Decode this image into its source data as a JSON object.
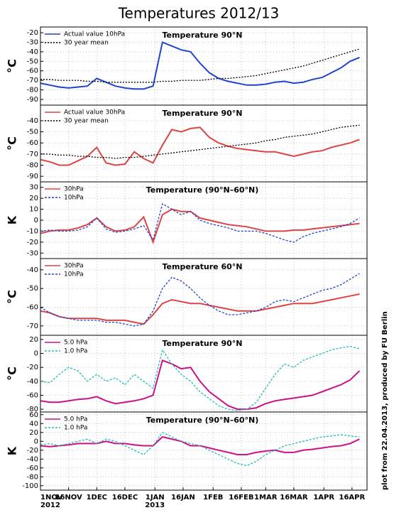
{
  "title": "Temperatures 2012/13",
  "credit": "plot from 22.04.2013, produced by FU Berlin",
  "x_axis": {
    "xlim": [
      0,
      174
    ],
    "xticks": [
      {
        "value": 0,
        "label": "1NOV"
      },
      {
        "value": 15,
        "label": "16NOV"
      },
      {
        "value": 30,
        "label": "1DEC"
      },
      {
        "value": 45,
        "label": "16DEC"
      },
      {
        "value": 61,
        "label": "1JAN"
      },
      {
        "value": 76,
        "label": "16JAN"
      },
      {
        "value": 92,
        "label": "1FEB"
      },
      {
        "value": 107,
        "label": "16FEB"
      },
      {
        "value": 120,
        "label": "1MAR"
      },
      {
        "value": 135,
        "label": "16MAR"
      },
      {
        "value": 151,
        "label": "1APR"
      },
      {
        "value": 166,
        "label": "16APR"
      }
    ],
    "year_labels": [
      {
        "value": 0,
        "label": "2012"
      },
      {
        "value": 61,
        "label": "2013"
      }
    ]
  },
  "chart_data": [
    {
      "type": "line",
      "title": "Temperature 90°N",
      "ylabel": "°C",
      "ylim": [
        -96,
        -14
      ],
      "yticks": [
        -90,
        -80,
        -70,
        -60,
        -50,
        -40,
        -30,
        -20
      ],
      "grid": true,
      "legend": "upper left",
      "x": [
        0,
        5,
        10,
        15,
        20,
        25,
        30,
        35,
        40,
        45,
        50,
        55,
        60,
        65,
        70,
        75,
        80,
        85,
        90,
        95,
        100,
        105,
        110,
        115,
        120,
        125,
        130,
        135,
        140,
        145,
        150,
        155,
        160,
        165,
        170
      ],
      "series": [
        {
          "name": "Actual value 10hPa",
          "color": "#2244cc",
          "style": "solid",
          "values": [
            -73,
            -75,
            -77,
            -78,
            -77,
            -76,
            -68,
            -72,
            -76,
            -78,
            -79,
            -79,
            -76,
            -30,
            -34,
            -38,
            -40,
            -52,
            -62,
            -68,
            -71,
            -73,
            -75,
            -75,
            -74,
            -72,
            -71,
            -73,
            -72,
            -69,
            -67,
            -62,
            -57,
            -50,
            -46
          ]
        },
        {
          "name": "30 year mean",
          "color": "#000000",
          "style": "dotted",
          "values": [
            -69,
            -69,
            -70,
            -70,
            -70,
            -71,
            -71,
            -72,
            -72,
            -72,
            -72,
            -72,
            -72,
            -71,
            -71,
            -70,
            -70,
            -70,
            -69,
            -68,
            -68,
            -67,
            -66,
            -65,
            -63,
            -61,
            -59,
            -57,
            -55,
            -52,
            -49,
            -46,
            -43,
            -40,
            -37
          ]
        }
      ]
    },
    {
      "type": "line",
      "title": "Temperature 90°N",
      "ylabel": "°C",
      "ylim": [
        -95,
        -26
      ],
      "yticks": [
        -90,
        -80,
        -70,
        -60,
        -50,
        -40
      ],
      "grid": true,
      "legend": "upper left",
      "x": [
        0,
        5,
        10,
        15,
        20,
        25,
        30,
        35,
        40,
        45,
        50,
        55,
        60,
        65,
        70,
        75,
        80,
        85,
        90,
        95,
        100,
        105,
        110,
        115,
        120,
        125,
        130,
        135,
        140,
        145,
        150,
        155,
        160,
        165,
        170
      ],
      "series": [
        {
          "name": "Actual value 30hPa",
          "color": "#dd4444",
          "style": "solid",
          "values": [
            -75,
            -77,
            -80,
            -80,
            -76,
            -72,
            -64,
            -78,
            -80,
            -79,
            -68,
            -74,
            -78,
            -62,
            -48,
            -50,
            -47,
            -46,
            -55,
            -60,
            -63,
            -65,
            -66,
            -67,
            -68,
            -68,
            -70,
            -72,
            -70,
            -68,
            -67,
            -64,
            -62,
            -60,
            -57
          ]
        },
        {
          "name": "30 year mean",
          "color": "#000000",
          "style": "dotted",
          "values": [
            -70,
            -70,
            -71,
            -71,
            -72,
            -72,
            -73,
            -73,
            -74,
            -73,
            -73,
            -72,
            -71,
            -70,
            -69,
            -68,
            -67,
            -66,
            -65,
            -64,
            -63,
            -62,
            -61,
            -60,
            -58,
            -57,
            -55,
            -54,
            -53,
            -52,
            -50,
            -48,
            -46,
            -45,
            -44
          ]
        }
      ]
    },
    {
      "type": "line",
      "title": "Temperature (90°N–60°N)",
      "ylabel": "K",
      "ylim": [
        -35,
        35
      ],
      "yticks": [
        -30,
        -20,
        -10,
        0,
        10,
        20,
        30
      ],
      "grid": true,
      "legend": "upper left",
      "x": [
        0,
        5,
        10,
        15,
        20,
        25,
        30,
        35,
        40,
        45,
        50,
        55,
        60,
        65,
        70,
        75,
        80,
        85,
        90,
        95,
        100,
        105,
        110,
        115,
        120,
        125,
        130,
        135,
        140,
        145,
        150,
        155,
        160,
        165,
        170
      ],
      "series": [
        {
          "name": "30hPa",
          "color": "#dd4444",
          "style": "solid",
          "values": [
            -12,
            -10,
            -9,
            -9,
            -7,
            -4,
            2,
            -6,
            -10,
            -9,
            -6,
            3,
            -20,
            5,
            10,
            8,
            8,
            2,
            0,
            -2,
            -4,
            -5,
            -6,
            -8,
            -10,
            -10,
            -10,
            -9,
            -9,
            -8,
            -7,
            -6,
            -5,
            -4,
            -3
          ]
        },
        {
          "name": "10hPa",
          "color": "#2244cc",
          "style": "dashed",
          "values": [
            -10,
            -9,
            -10,
            -10,
            -9,
            -6,
            2,
            -8,
            -11,
            -10,
            -8,
            -5,
            -18,
            15,
            10,
            5,
            8,
            0,
            -3,
            -5,
            -7,
            -10,
            -10,
            -10,
            -12,
            -15,
            -18,
            -20,
            -15,
            -12,
            -10,
            -8,
            -6,
            -3,
            2
          ]
        }
      ]
    },
    {
      "type": "line",
      "title": "Temperature 60°N",
      "ylabel": "°C",
      "ylim": [
        -75,
        -34
      ],
      "yticks": [
        -70,
        -60,
        -50,
        -40
      ],
      "grid": true,
      "legend": "upper left",
      "x": [
        0,
        5,
        10,
        15,
        20,
        25,
        30,
        35,
        40,
        45,
        50,
        55,
        60,
        65,
        70,
        75,
        80,
        85,
        90,
        95,
        100,
        105,
        110,
        115,
        120,
        125,
        130,
        135,
        140,
        145,
        150,
        155,
        160,
        165,
        170
      ],
      "series": [
        {
          "name": "30hPa",
          "color": "#dd4444",
          "style": "solid",
          "values": [
            -62,
            -63,
            -65,
            -66,
            -66,
            -66,
            -66,
            -67,
            -67,
            -67,
            -68,
            -69,
            -64,
            -58,
            -56,
            -57,
            -58,
            -58,
            -59,
            -60,
            -61,
            -62,
            -62,
            -62,
            -61,
            -60,
            -59,
            -58,
            -58,
            -58,
            -57,
            -56,
            -55,
            -54,
            -53
          ]
        },
        {
          "name": "10hPa",
          "color": "#2244cc",
          "style": "dashed",
          "values": [
            -60,
            -63,
            -65,
            -66,
            -67,
            -67,
            -67,
            -68,
            -68,
            -69,
            -70,
            -69,
            -62,
            -50,
            -44,
            -46,
            -50,
            -55,
            -59,
            -62,
            -64,
            -64,
            -63,
            -62,
            -60,
            -57,
            -56,
            -57,
            -55,
            -53,
            -51,
            -50,
            -48,
            -45,
            -42
          ]
        }
      ]
    },
    {
      "type": "line",
      "title": "Temperature 90°N",
      "ylabel": "°C",
      "ylim": [
        -84,
        26
      ],
      "yticks": [
        -80,
        -60,
        -40,
        -20,
        0,
        20
      ],
      "grid": true,
      "legend": "upper left",
      "x": [
        0,
        5,
        10,
        15,
        20,
        25,
        30,
        35,
        40,
        45,
        50,
        55,
        60,
        65,
        70,
        75,
        80,
        85,
        90,
        95,
        100,
        105,
        110,
        115,
        120,
        125,
        130,
        135,
        140,
        145,
        150,
        155,
        160,
        165,
        170
      ],
      "series": [
        {
          "name": "5.0 hPa",
          "color": "#cc1188",
          "style": "solid",
          "values": [
            -68,
            -70,
            -70,
            -68,
            -66,
            -65,
            -62,
            -68,
            -72,
            -70,
            -68,
            -65,
            -60,
            -10,
            -15,
            -22,
            -20,
            -40,
            -55,
            -65,
            -75,
            -80,
            -80,
            -78,
            -72,
            -68,
            -66,
            -64,
            -62,
            -60,
            -55,
            -50,
            -45,
            -38,
            -25
          ]
        },
        {
          "name": "1.0 hPa",
          "color": "#22bbbb",
          "style": "dashed",
          "values": [
            -40,
            -42,
            -30,
            -20,
            -25,
            -40,
            -30,
            -40,
            -35,
            -45,
            -30,
            -40,
            -50,
            5,
            -15,
            -30,
            -40,
            -55,
            -65,
            -75,
            -80,
            -82,
            -80,
            -70,
            -50,
            -30,
            -15,
            -20,
            -10,
            -5,
            0,
            5,
            8,
            10,
            7
          ]
        }
      ]
    },
    {
      "type": "line",
      "title": "Temperature (90°N–60°N)",
      "ylabel": "K",
      "ylim": [
        -110,
        66
      ],
      "yticks": [
        -100,
        -80,
        -60,
        -40,
        -20,
        0,
        20,
        40,
        60
      ],
      "grid": true,
      "legend": "upper left",
      "x": [
        0,
        5,
        10,
        15,
        20,
        25,
        30,
        35,
        40,
        45,
        50,
        55,
        60,
        65,
        70,
        75,
        80,
        85,
        90,
        95,
        100,
        105,
        110,
        115,
        120,
        125,
        130,
        135,
        140,
        145,
        150,
        155,
        160,
        165,
        170
      ],
      "series": [
        {
          "name": "5.0 hPa",
          "color": "#cc1188",
          "style": "solid",
          "values": [
            -10,
            -12,
            -10,
            -8,
            -5,
            -5,
            -5,
            0,
            -5,
            -5,
            -8,
            -10,
            -10,
            10,
            5,
            0,
            -10,
            -10,
            -15,
            -20,
            -25,
            -30,
            -30,
            -25,
            -22,
            -20,
            -25,
            -25,
            -20,
            -18,
            -15,
            -12,
            -10,
            -5,
            5
          ]
        },
        {
          "name": "1.0 hPa",
          "color": "#22bbbb",
          "style": "dashed",
          "values": [
            -8,
            -5,
            -10,
            -5,
            0,
            5,
            -5,
            5,
            0,
            -10,
            -20,
            -30,
            -10,
            20,
            10,
            0,
            -5,
            -10,
            -20,
            -30,
            -40,
            -50,
            -55,
            -45,
            -30,
            -20,
            -10,
            -5,
            0,
            5,
            10,
            12,
            15,
            12,
            10
          ]
        }
      ]
    }
  ]
}
